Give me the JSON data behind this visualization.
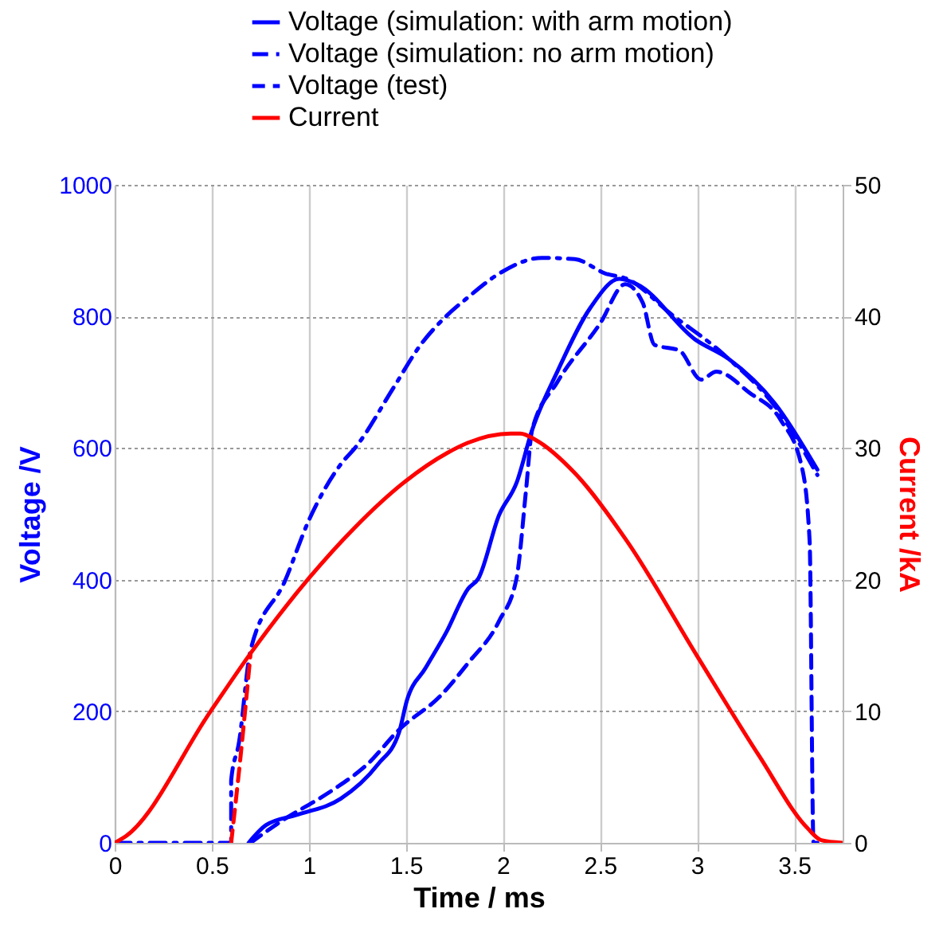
{
  "chart_data": {
    "type": "line",
    "xlabel": "Time / ms",
    "ylabel": "Voltage /V",
    "y2label": "Current /kA",
    "xlim": [
      0,
      3.75
    ],
    "xticks": [
      0,
      0.5,
      1,
      1.5,
      2,
      2.5,
      3,
      3.5
    ],
    "ylim": [
      0,
      1000
    ],
    "yticks": [
      0,
      200,
      400,
      600,
      800,
      1000
    ],
    "y2lim": [
      0,
      50
    ],
    "y2ticks": [
      0,
      10,
      20,
      30,
      40,
      50
    ],
    "grid": true,
    "legend": "top",
    "marker": "none",
    "series": [
      {
        "name": "Voltage (simulation: with arm motion)",
        "color": "#0000ff",
        "line_style": "solid",
        "axis": "y",
        "x": [
          0.69,
          0.78,
          0.945,
          1.164,
          1.355,
          1.465,
          1.505,
          1.6,
          1.71,
          1.82,
          1.874,
          1.98,
          2.07,
          2.15,
          2.28,
          2.45,
          2.6,
          2.69,
          2.99,
          3.16,
          3.4,
          3.62
        ],
        "values": [
          0,
          27,
          43,
          67,
          119,
          168,
          216,
          265,
          321,
          386,
          402,
          498,
          547,
          627,
          716,
          813,
          857,
          849,
          765,
          736,
          668,
          567
        ]
      },
      {
        "name": "Voltage (simulation: no arm motion)",
        "color": "#0000ff",
        "line_style": "dashdot",
        "axis": "y",
        "x": [
          0,
          0.6,
          0.6,
          0.64,
          0.7,
          0.877,
          1.0,
          1.164,
          1.246,
          1.437,
          1.574,
          1.71,
          1.82,
          1.98,
          2.2,
          2.37,
          2.53,
          2.64,
          2.86,
          3.13,
          3.43,
          3.62
        ],
        "values": [
          0,
          0,
          95,
          152,
          293,
          398,
          490,
          575,
          603,
          692,
          756,
          801,
          829,
          865,
          889,
          887,
          865,
          857,
          805,
          744,
          652,
          559
        ]
      },
      {
        "name": "Voltage (test)",
        "color": "#0000ff",
        "line_style": "dashed",
        "axis": "y",
        "x": [
          0.7,
          0.89,
          1.03,
          1.137,
          1.3,
          1.465,
          1.68,
          1.82,
          1.98,
          2.07,
          2.12,
          2.15,
          2.28,
          2.5,
          2.63,
          2.72,
          2.78,
          2.91,
          3.02,
          3.1,
          3.27,
          3.43,
          3.54,
          3.58,
          3.6,
          3.62
        ],
        "values": [
          0,
          39,
          63,
          83,
          119,
          172,
          224,
          273,
          337,
          402,
          539,
          627,
          700,
          789,
          849,
          821,
          757,
          748,
          704,
          716,
          684,
          643,
          571,
          458,
          0,
          0
        ]
      },
      {
        "name": "Current",
        "color": "#ff0000",
        "line_style": "solid",
        "axis": "y2",
        "x": [
          0,
          0.057,
          0.494,
          0.7,
          1.0,
          1.233,
          1.5,
          1.71,
          1.82,
          2.04,
          2.09,
          2.17,
          2.37,
          2.64,
          3.0,
          3.32,
          3.57,
          3.64,
          3.75
        ],
        "values": [
          0,
          0.5,
          10,
          14.4,
          20.1,
          23.9,
          27.5,
          29.6,
          30.4,
          31.1,
          31.1,
          30.6,
          28.1,
          22.9,
          14.2,
          6.6,
          1.1,
          0.2,
          0
        ]
      },
      {
        "color": "#ff0000",
        "line_style": "dashed",
        "axis": "y2",
        "x": [
          0.6,
          0.65,
          0.7
        ],
        "values": [
          0,
          6.8,
          14.4
        ]
      }
    ]
  }
}
